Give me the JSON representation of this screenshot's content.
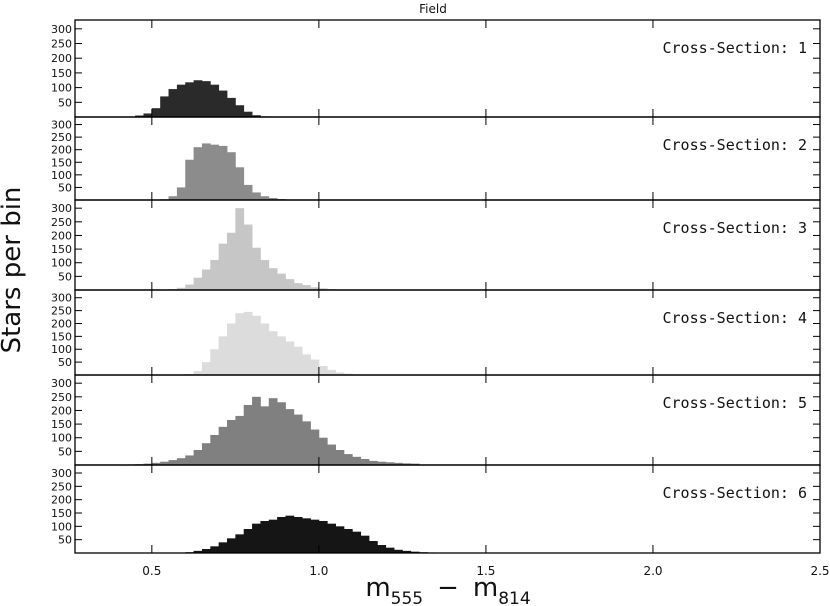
{
  "chart_data": {
    "type": "bar",
    "title": "Field",
    "ylabel": "Stars per bin",
    "xlabel": {
      "main": "m",
      "sub1": "555",
      "dash": "−",
      "main2": "m",
      "sub2": "814"
    },
    "xlim": [
      0.27,
      2.5
    ],
    "ylim": [
      0,
      330
    ],
    "x_ticks": [
      "0.5",
      "1.0",
      "1.5",
      "2.0",
      "2.5"
    ],
    "x_tick_values": [
      0.5,
      1.0,
      1.5,
      2.0,
      2.5
    ],
    "y_ticks": [
      "50",
      "100",
      "150",
      "200",
      "250",
      "300"
    ],
    "y_tick_values": [
      50,
      100,
      150,
      200,
      250,
      300
    ],
    "bin_width": 0.025,
    "panels": [
      {
        "label": "Cross-Section: 1",
        "color": "#2a2a2a",
        "start": 0.45,
        "values": [
          5,
          12,
          30,
          70,
          95,
          110,
          118,
          125,
          122,
          110,
          90,
          65,
          40,
          18,
          6,
          2
        ]
      },
      {
        "label": "Cross-Section: 2",
        "color": "#8c8c8c",
        "start": 0.525,
        "values": [
          3,
          15,
          50,
          160,
          210,
          225,
          220,
          215,
          190,
          130,
          60,
          30,
          15,
          8,
          4,
          2,
          1
        ]
      },
      {
        "label": "Cross-Section: 3",
        "color": "#c6c6c6",
        "start": 0.55,
        "values": [
          3,
          8,
          20,
          45,
          75,
          110,
          170,
          210,
          300,
          240,
          155,
          110,
          80,
          60,
          40,
          25,
          18,
          10,
          6,
          3,
          1
        ]
      },
      {
        "label": "Cross-Section: 4",
        "color": "#dcdcdc",
        "start": 0.6,
        "values": [
          4,
          15,
          50,
          100,
          150,
          200,
          240,
          245,
          230,
          200,
          170,
          150,
          130,
          110,
          80,
          60,
          35,
          20,
          10,
          5,
          2
        ]
      },
      {
        "label": "Cross-Section: 5",
        "color": "#808080",
        "start": 0.4,
        "values": [
          1,
          2,
          3,
          5,
          8,
          12,
          18,
          25,
          35,
          55,
          80,
          110,
          140,
          165,
          180,
          220,
          250,
          215,
          245,
          230,
          205,
          185,
          160,
          130,
          100,
          75,
          55,
          40,
          30,
          22,
          15,
          12,
          10,
          8,
          6,
          5
        ]
      },
      {
        "label": "Cross-Section: 6",
        "color": "#151515",
        "start": 0.6,
        "values": [
          3,
          8,
          15,
          25,
          40,
          55,
          70,
          90,
          110,
          120,
          125,
          135,
          140,
          135,
          130,
          125,
          120,
          110,
          100,
          90,
          80,
          65,
          45,
          30,
          20,
          12,
          8,
          5,
          3,
          2
        ]
      }
    ]
  }
}
